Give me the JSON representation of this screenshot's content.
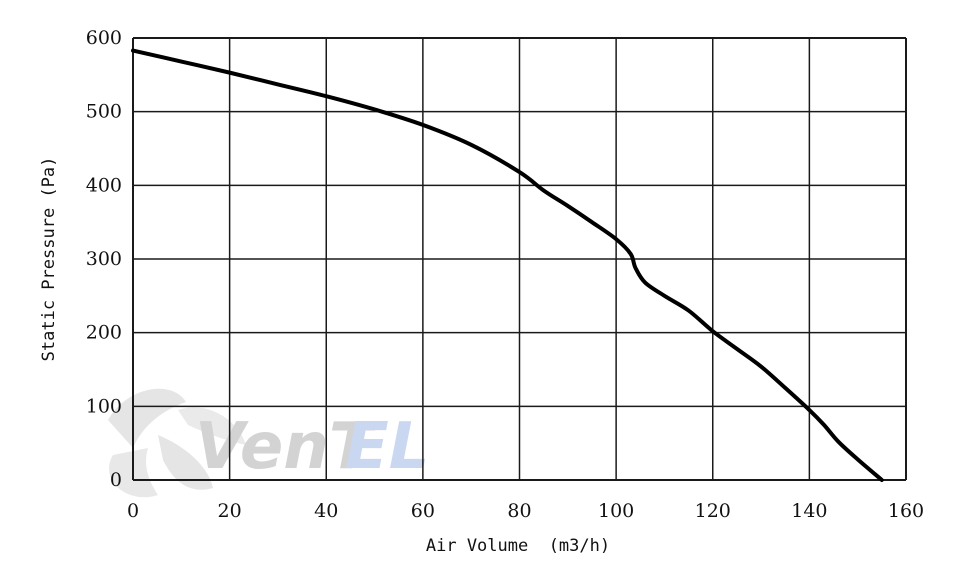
{
  "chart_data": {
    "type": "line",
    "title": "",
    "xlabel": "Air Volume  (m3/h)",
    "ylabel": "Static Pressure (Pa)",
    "xlim": [
      0,
      160
    ],
    "ylim": [
      0,
      600
    ],
    "x_ticks": [
      0,
      20,
      40,
      60,
      80,
      100,
      120,
      140,
      160
    ],
    "y_ticks": [
      0,
      100,
      200,
      300,
      400,
      500,
      600
    ],
    "grid": true,
    "legend": "none",
    "series": [
      {
        "color": "#000000",
        "x": [
          0,
          10,
          20,
          30,
          40,
          50,
          60,
          70,
          80,
          85,
          90,
          95,
          100,
          103,
          104,
          106,
          110,
          115,
          120,
          125,
          130,
          135,
          140,
          143,
          146,
          150,
          155
        ],
        "y": [
          583,
          568,
          553,
          537,
          521,
          503,
          482,
          455,
          418,
          393,
          372,
          350,
          327,
          307,
          288,
          268,
          250,
          230,
          202,
          178,
          154,
          125,
          95,
          75,
          52,
          28,
          0
        ]
      }
    ]
  },
  "watermark": {
    "text_main": "VenT",
    "text_accent": "EL",
    "color_main": "#cfcfcf",
    "color_accent": "#c5d3f0"
  }
}
